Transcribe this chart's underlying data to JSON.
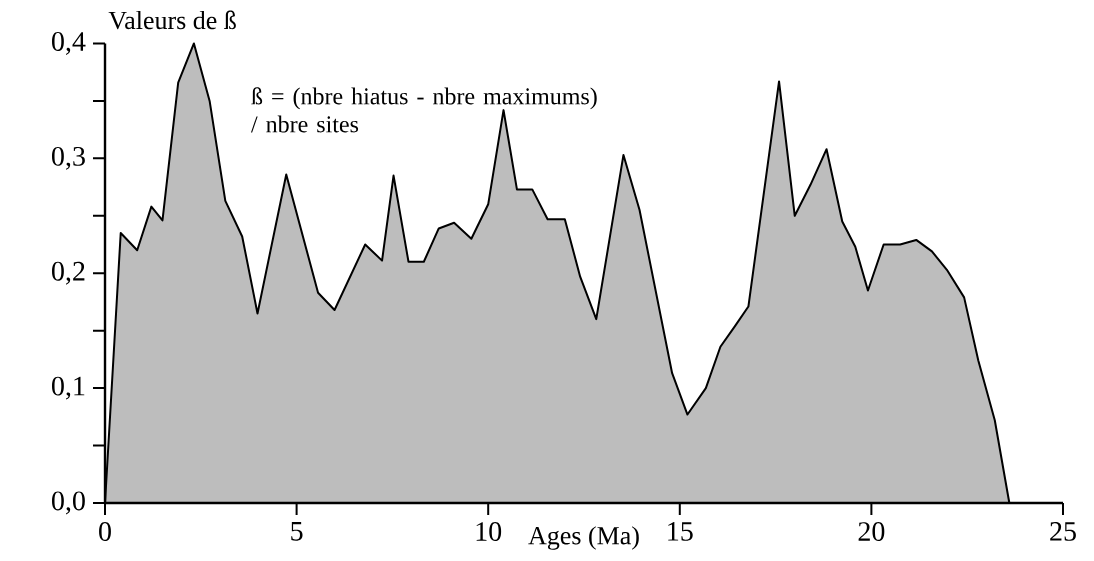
{
  "chart_data": {
    "type": "area",
    "xlabel": "Ages (Ma)",
    "ylabel": "Valeurs de ß",
    "annotations": [
      "ß = (nbre hiatus - nbre maximums) / nbre sites"
    ],
    "x": [
      0,
      0.41,
      0.84,
      1.21,
      1.5,
      1.91,
      2.32,
      2.73,
      3.14,
      3.58,
      3.98,
      4.73,
      5.56,
      5.99,
      6.79,
      7.23,
      7.53,
      7.92,
      8.32,
      8.71,
      9.11,
      9.56,
      10.0,
      10.4,
      10.75,
      11.15,
      11.55,
      12.0,
      12.4,
      12.82,
      13.53,
      13.95,
      14.8,
      15.2,
      15.68,
      16.06,
      16.44,
      16.79,
      17.59,
      18.0,
      18.41,
      18.83,
      19.24,
      19.58,
      19.91,
      20.32,
      20.75,
      21.17,
      21.58,
      21.97,
      22.42,
      22.79,
      23.22,
      23.6
    ],
    "series": [
      {
        "color": "#bdbdbd",
        "values": [
          0,
          0.235,
          0.22,
          0.258,
          0.246,
          0.366,
          0.4,
          0.35,
          0.263,
          0.232,
          0.165,
          0.286,
          0.183,
          0.168,
          0.225,
          0.211,
          0.285,
          0.21,
          0.21,
          0.239,
          0.244,
          0.23,
          0.26,
          0.342,
          0.273,
          0.273,
          0.247,
          0.247,
          0.197,
          0.16,
          0.303,
          0.255,
          0.113,
          0.077,
          0.1,
          0.136,
          0.154,
          0.171,
          0.367,
          0.25,
          0.277,
          0.308,
          0.245,
          0.223,
          0.185,
          0.225,
          0.225,
          0.229,
          0.219,
          0.203,
          0.179,
          0.124,
          0.072,
          0
        ]
      }
    ],
    "xlim": [
      0,
      25
    ],
    "xticks": [
      0,
      5,
      10,
      15,
      20,
      25
    ],
    "ylim": [
      0,
      0.4
    ],
    "yticks": [
      {
        "value": 0,
        "label": "0,0"
      },
      {
        "value": 0.1,
        "label": "0,1"
      },
      {
        "value": 0.2,
        "label": "0,2"
      },
      {
        "value": 0.3,
        "label": "0,3"
      },
      {
        "value": 0.4,
        "label": "0,4"
      }
    ],
    "grid": false
  }
}
